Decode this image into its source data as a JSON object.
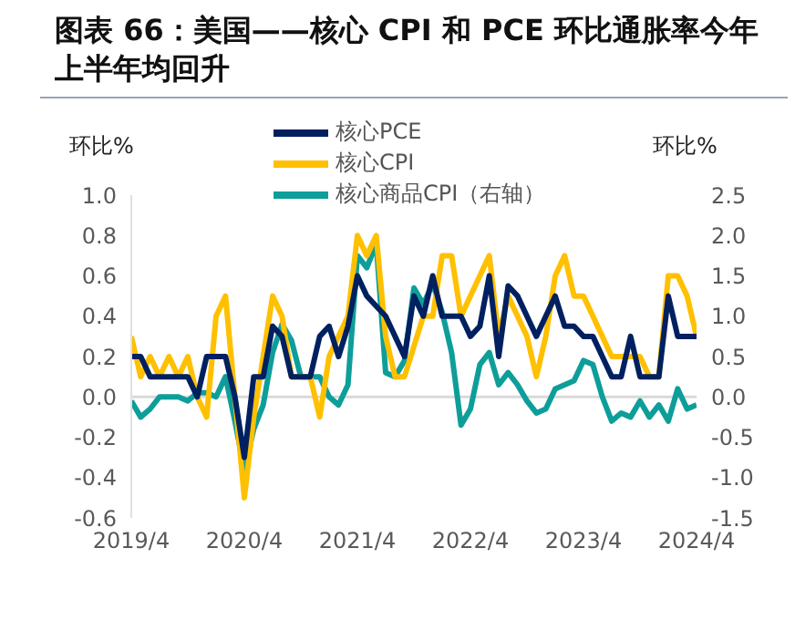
{
  "chart_data": {
    "type": "line",
    "title": "图表 66：美国——核心 CPI 和 PCE 环比通胀率今年上半年均回升",
    "ylabel": "环比%",
    "y2label": "环比%",
    "x": [
      "2019-04",
      "2019-05",
      "2019-06",
      "2019-07",
      "2019-08",
      "2019-09",
      "2019-10",
      "2019-11",
      "2019-12",
      "2020-01",
      "2020-02",
      "2020-03",
      "2020-04",
      "2020-05",
      "2020-06",
      "2020-07",
      "2020-08",
      "2020-09",
      "2020-10",
      "2020-11",
      "2020-12",
      "2021-01",
      "2021-02",
      "2021-03",
      "2021-04",
      "2021-05",
      "2021-06",
      "2021-07",
      "2021-08",
      "2021-09",
      "2021-10",
      "2021-11",
      "2021-12",
      "2022-01",
      "2022-02",
      "2022-03",
      "2022-04",
      "2022-05",
      "2022-06",
      "2022-07",
      "2022-08",
      "2022-09",
      "2022-10",
      "2022-11",
      "2022-12",
      "2023-01",
      "2023-02",
      "2023-03",
      "2023-04",
      "2023-05",
      "2023-06",
      "2023-07",
      "2023-08",
      "2023-09",
      "2023-10",
      "2023-11",
      "2023-12",
      "2024-01",
      "2024-02",
      "2024-03",
      "2024-04"
    ],
    "series": [
      {
        "name": "核心PCE",
        "color": "#002060",
        "values": [
          0.2,
          0.2,
          0.1,
          0.1,
          0.1,
          0.1,
          0.1,
          0.0,
          0.2,
          0.2,
          0.2,
          0.0,
          -0.3,
          0.1,
          0.1,
          0.35,
          0.3,
          0.1,
          0.1,
          0.1,
          0.3,
          0.35,
          0.2,
          0.35,
          0.6,
          0.5,
          0.45,
          0.4,
          0.3,
          0.2,
          0.5,
          0.4,
          0.6,
          0.4,
          0.4,
          0.4,
          0.3,
          0.35,
          0.6,
          0.2,
          0.55,
          0.5,
          0.4,
          0.3,
          0.4,
          0.5,
          0.35,
          0.35,
          0.3,
          0.3,
          0.2,
          0.1,
          0.1,
          0.3,
          0.1,
          0.1,
          0.1,
          0.5,
          0.3,
          0.3,
          0.3
        ]
      },
      {
        "name": "核心CPI",
        "color": "#ffc000",
        "values": [
          0.3,
          0.1,
          0.2,
          0.1,
          0.2,
          0.1,
          0.2,
          0.0,
          -0.1,
          0.4,
          0.5,
          0.0,
          -0.5,
          -0.1,
          0.2,
          0.5,
          0.4,
          0.1,
          0.1,
          0.1,
          -0.1,
          0.2,
          0.3,
          0.4,
          0.8,
          0.7,
          0.8,
          0.3,
          0.1,
          0.1,
          0.25,
          0.4,
          0.4,
          0.7,
          0.7,
          0.4,
          0.5,
          0.6,
          0.7,
          0.3,
          0.5,
          0.4,
          0.3,
          0.1,
          0.3,
          0.6,
          0.7,
          0.5,
          0.5,
          0.4,
          0.3,
          0.2,
          0.2,
          0.2,
          0.2,
          0.1,
          0.1,
          0.6,
          0.6,
          0.5,
          0.3
        ]
      },
      {
        "name": "核心商品CPI（右轴）",
        "color": "#0e9e9a",
        "axis": "y2",
        "values": [
          -0.05,
          -0.25,
          -0.15,
          0.0,
          0.0,
          0.0,
          -0.05,
          0.05,
          0.05,
          0.0,
          0.25,
          -0.3,
          -0.9,
          -0.4,
          -0.1,
          0.55,
          0.9,
          0.7,
          0.25,
          0.25,
          0.25,
          0.0,
          -0.1,
          0.15,
          1.75,
          1.6,
          1.9,
          0.3,
          0.25,
          0.45,
          1.35,
          1.15,
          1.4,
          1.05,
          0.55,
          -0.35,
          -0.15,
          0.4,
          0.55,
          0.15,
          0.3,
          0.15,
          -0.05,
          -0.2,
          -0.15,
          0.1,
          0.15,
          0.2,
          0.45,
          0.4,
          0.0,
          -0.3,
          -0.2,
          -0.25,
          -0.05,
          -0.25,
          -0.1,
          -0.3,
          0.1,
          -0.15,
          -0.1
        ]
      }
    ],
    "xlim": [
      "2019-04",
      "2024-04"
    ],
    "xticks": [
      {
        "value": "2019-04",
        "label": "2019/4"
      },
      {
        "value": "2020-04",
        "label": "2020/4"
      },
      {
        "value": "2021-04",
        "label": "2021/4"
      },
      {
        "value": "2022-04",
        "label": "2022/4"
      },
      {
        "value": "2023-04",
        "label": "2023/4"
      },
      {
        "value": "2024-04",
        "label": "2024/4"
      }
    ],
    "ylim": [
      -0.6,
      1.0
    ],
    "yticks": [
      -0.6,
      -0.4,
      -0.2,
      {
        "value": 0,
        "label": "0.0"
      },
      0.2,
      0.4,
      0.6,
      0.8,
      {
        "value": 1,
        "label": "1.0"
      }
    ],
    "y2lim": [
      -1.5,
      2.5
    ],
    "y2ticks": [
      -1.5,
      {
        "value": -1,
        "label": "-1.0"
      },
      -0.5,
      {
        "value": 0,
        "label": "0.0"
      },
      0.5,
      {
        "value": 1,
        "label": "1.0"
      },
      1.5,
      {
        "value": 2,
        "label": "2.0"
      },
      2.5
    ],
    "ref_lines": [
      {
        "axis": "y",
        "value": 0,
        "color": "#d9d9d9"
      }
    ],
    "legend": "top"
  }
}
